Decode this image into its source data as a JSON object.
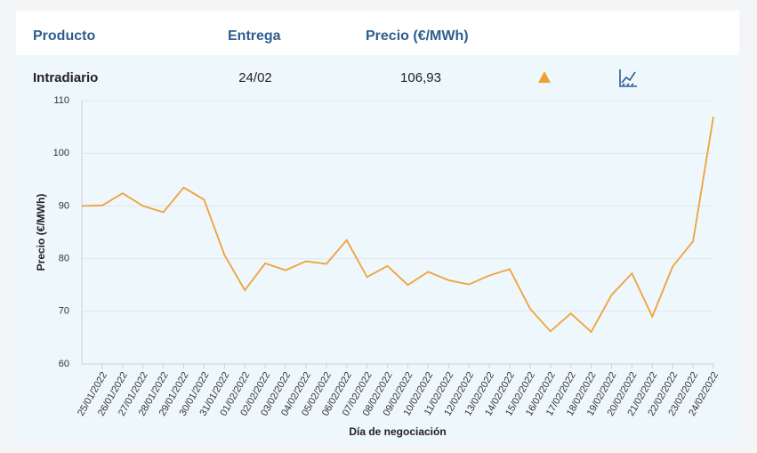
{
  "header": {
    "columns": [
      "Producto",
      "Entrega",
      "Precio (€/MWh)"
    ]
  },
  "row": {
    "product": "Intradiario",
    "delivery": "24/02",
    "price": "106,93"
  },
  "chart_data": {
    "type": "line",
    "x_label": "Día de negociación",
    "y_label": "Precio (€/MWh)",
    "categories": [
      null,
      "25/01/2022",
      "26/01/2022",
      "27/01/2022",
      "28/01/2022",
      "29/01/2022",
      "30/01/2022",
      "31/01/2022",
      "01/02/2022",
      "02/02/2022",
      "03/02/2022",
      "04/02/2022",
      "05/02/2022",
      "06/02/2022",
      "07/02/2022",
      "08/02/2022",
      "09/02/2022",
      "10/02/2022",
      "11/02/2022",
      "12/02/2022",
      "13/02/2022",
      "14/02/2022",
      "15/02/2022",
      "16/02/2022",
      "17/02/2022",
      "18/02/2022",
      "19/02/2022",
      "20/02/2022",
      "21/02/2022",
      "22/02/2022",
      "23/02/2022",
      "24/02/2022"
    ],
    "series": [
      {
        "name": "Intradiario",
        "color": "#f0a23a",
        "values": [
          90.0,
          90.1,
          92.4,
          90.0,
          88.8,
          93.5,
          91.2,
          80.7,
          74.0,
          79.1,
          77.8,
          79.5,
          79.0,
          83.5,
          76.5,
          78.6,
          75.0,
          77.5,
          75.9,
          75.1,
          76.8,
          78.0,
          70.5,
          66.2,
          69.6,
          66.1,
          73.1,
          77.2,
          69.0,
          78.5,
          83.3,
          106.93
        ]
      }
    ],
    "ylim": [
      60,
      110
    ],
    "yticks": [
      60,
      70,
      80,
      90,
      100,
      110
    ],
    "grid": true
  }
}
